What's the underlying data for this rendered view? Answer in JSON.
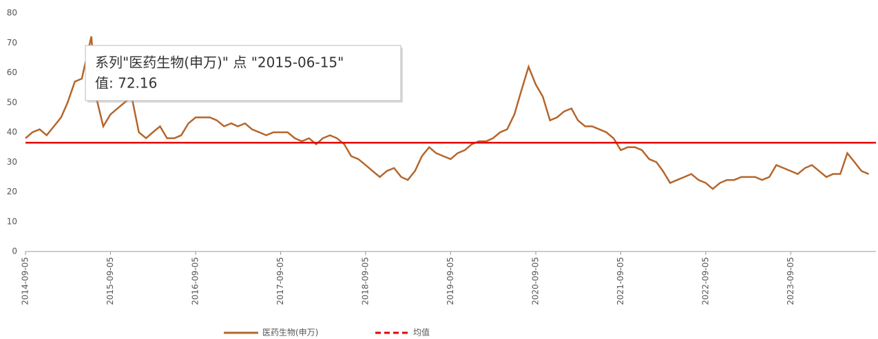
{
  "chart_data": {
    "type": "line",
    "x": [
      "2014-09-05",
      "2014-10-05",
      "2014-11-05",
      "2014-12-05",
      "2015-01-05",
      "2015-02-05",
      "2015-03-05",
      "2015-04-05",
      "2015-05-05",
      "2015-06-15",
      "2015-07-05",
      "2015-08-05",
      "2015-09-05",
      "2015-10-05",
      "2015-11-05",
      "2015-12-05",
      "2016-01-05",
      "2016-02-05",
      "2016-03-05",
      "2016-04-05",
      "2016-05-05",
      "2016-06-05",
      "2016-07-05",
      "2016-08-05",
      "2016-09-05",
      "2016-10-05",
      "2016-11-05",
      "2016-12-05",
      "2017-01-05",
      "2017-02-05",
      "2017-03-05",
      "2017-04-05",
      "2017-05-05",
      "2017-06-05",
      "2017-07-05",
      "2017-08-05",
      "2017-09-05",
      "2017-10-05",
      "2017-11-05",
      "2017-12-05",
      "2018-01-05",
      "2018-02-05",
      "2018-03-05",
      "2018-04-05",
      "2018-05-05",
      "2018-06-05",
      "2018-07-05",
      "2018-08-05",
      "2018-09-05",
      "2018-10-05",
      "2018-11-05",
      "2018-12-05",
      "2019-01-05",
      "2019-02-05",
      "2019-03-05",
      "2019-04-05",
      "2019-05-05",
      "2019-06-05",
      "2019-07-05",
      "2019-08-05",
      "2019-09-05",
      "2019-10-05",
      "2019-11-05",
      "2019-12-05",
      "2020-01-05",
      "2020-02-05",
      "2020-03-05",
      "2020-04-05",
      "2020-05-05",
      "2020-06-05",
      "2020-07-05",
      "2020-08-05",
      "2020-09-05",
      "2020-10-05",
      "2020-11-05",
      "2020-12-05",
      "2021-01-05",
      "2021-02-05",
      "2021-03-05",
      "2021-04-05",
      "2021-05-05",
      "2021-06-05",
      "2021-07-05",
      "2021-08-05",
      "2021-09-05",
      "2021-10-05",
      "2021-11-05",
      "2021-12-05",
      "2022-01-05",
      "2022-02-05",
      "2022-03-05",
      "2022-04-05",
      "2022-05-05",
      "2022-06-05",
      "2022-07-05",
      "2022-08-05",
      "2022-09-05",
      "2022-10-05",
      "2022-11-05",
      "2022-12-05",
      "2023-01-05",
      "2023-02-05",
      "2023-03-05",
      "2023-04-05",
      "2023-05-05",
      "2023-06-05",
      "2023-07-05",
      "2023-08-05",
      "2023-09-05",
      "2023-10-05",
      "2023-11-05",
      "2023-12-05",
      "2024-01-05",
      "2024-02-05",
      "2024-03-05",
      "2024-04-05",
      "2024-05-05",
      "2024-06-05",
      "2024-07-05",
      "2024-08-05"
    ],
    "series": [
      {
        "name": "医药生物(申万)",
        "color": "#b5652a",
        "values": [
          38,
          40,
          41,
          39,
          42,
          45,
          50,
          57,
          58,
          72.16,
          52,
          42,
          46,
          48,
          50,
          52,
          40,
          38,
          40,
          42,
          38,
          38,
          39,
          43,
          45,
          45,
          45,
          44,
          42,
          43,
          42,
          43,
          41,
          40,
          39,
          40,
          40,
          40,
          38,
          37,
          38,
          36,
          38,
          39,
          38,
          36,
          32,
          31,
          29,
          27,
          25,
          27,
          28,
          25,
          24,
          27,
          32,
          35,
          33,
          32,
          31,
          33,
          34,
          36,
          37,
          37,
          38,
          40,
          41,
          46,
          54,
          62,
          56,
          52,
          44,
          45,
          47,
          48,
          44,
          42,
          42,
          41,
          40,
          38,
          34,
          35,
          35,
          34,
          31,
          30,
          27,
          23,
          24,
          25,
          26,
          24,
          23,
          21,
          23,
          24,
          24,
          25,
          25,
          25,
          24,
          25,
          29,
          28,
          27,
          26,
          28,
          29,
          27,
          25,
          26,
          26,
          33,
          30,
          27,
          26
        ]
      }
    ],
    "reference_line": {
      "name": "均值",
      "value": 36.5,
      "color": "#e60000"
    },
    "xlim": [
      "2014-09-05",
      "2024-09-05"
    ],
    "xticks": [
      "2014-09-05",
      "2015-09-05",
      "2016-09-05",
      "2017-09-05",
      "2018-09-05",
      "2019-09-05",
      "2020-09-05",
      "2021-09-05",
      "2022-09-05",
      "2023-09-05"
    ],
    "ylim": [
      0,
      80
    ],
    "yticks": [
      0,
      10,
      20,
      30,
      40,
      50,
      60,
      70,
      80
    ],
    "legend": "bottom",
    "tooltip": {
      "line1": "系列\"医药生物(申万)\" 点 \"2015-06-15\"",
      "line2": "值: 72.16"
    }
  }
}
